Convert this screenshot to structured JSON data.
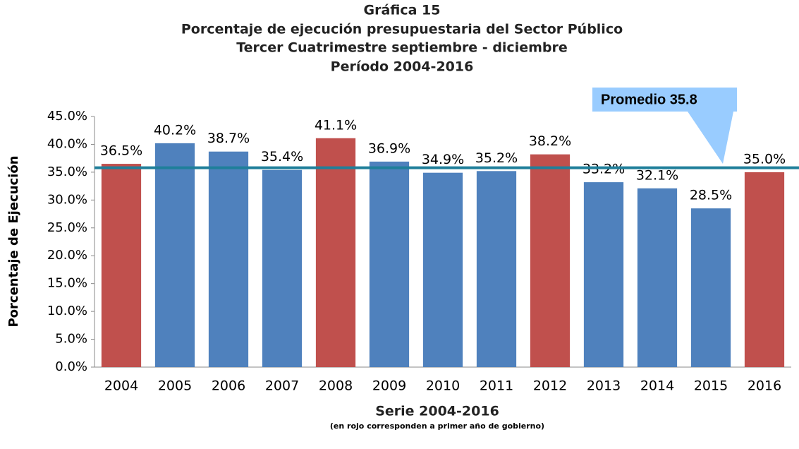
{
  "chart_data": {
    "type": "bar",
    "title": [
      "Gráfica 15",
      "Porcentaje de ejecución presupuestaria del Sector Público",
      "Tercer Cuatrimestre septiembre - diciembre",
      "Período 2004-2016"
    ],
    "x_label": "Serie 2004-2016",
    "x_note": "(en rojo corresponden a primer año de gobierno)",
    "y_label": "Porcentaje de Ejecución",
    "categories": [
      "2004",
      "2005",
      "2006",
      "2007",
      "2008",
      "2009",
      "2010",
      "2011",
      "2012",
      "2013",
      "2014",
      "2015",
      "2016"
    ],
    "values": [
      36.5,
      40.2,
      38.7,
      35.4,
      41.1,
      36.9,
      34.9,
      35.2,
      38.2,
      33.2,
      32.1,
      28.5,
      35.0
    ],
    "value_labels": [
      "36.5%",
      "40.2%",
      "38.7%",
      "35.4%",
      "41.1%",
      "36.9%",
      "34.9%",
      "35.2%",
      "38.2%",
      "33.2%",
      "32.1%",
      "28.5%",
      "35.0%"
    ],
    "colors": [
      "#c0504d",
      "#4f81bd",
      "#4f81bd",
      "#4f81bd",
      "#c0504d",
      "#4f81bd",
      "#4f81bd",
      "#4f81bd",
      "#c0504d",
      "#4f81bd",
      "#4f81bd",
      "#4f81bd",
      "#c0504d"
    ],
    "ylim": [
      0,
      45
    ],
    "yticks": [
      {
        "value": 0,
        "label": "0.0%"
      },
      {
        "value": 5,
        "label": "5.0%"
      },
      {
        "value": 10,
        "label": "10.0%"
      },
      {
        "value": 15,
        "label": "15.0%"
      },
      {
        "value": 20,
        "label": "20.0%"
      },
      {
        "value": 25,
        "label": "25.0%"
      },
      {
        "value": 30,
        "label": "30.0%"
      },
      {
        "value": 35,
        "label": "35.0%"
      },
      {
        "value": 40,
        "label": "40.0%"
      },
      {
        "value": 45,
        "label": "45.0%"
      }
    ],
    "annotations": [
      {
        "label": "Promedio 35.8",
        "value": 35.8,
        "color": "#1f7f9a"
      }
    ]
  }
}
